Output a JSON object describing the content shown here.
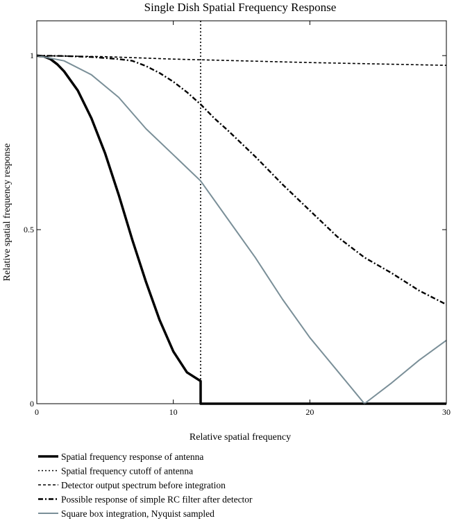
{
  "chart_data": {
    "type": "line",
    "title": "Single Dish Spatial Frequency Response",
    "xlabel": "Relative spatial frequency",
    "ylabel": "Relative spatial frequency response",
    "xlim": [
      0,
      30
    ],
    "ylim": [
      0,
      1.1
    ],
    "xticks": [
      0,
      10,
      20,
      30
    ],
    "xtick_labels": [
      "0",
      "10",
      "20",
      "30"
    ],
    "yticks": [
      0,
      0.5,
      1
    ],
    "ytick_labels": [
      "0",
      "0.5",
      "1"
    ],
    "grid": false,
    "legend_position": "below",
    "series": [
      {
        "name": "Spatial frequency response of antenna",
        "color": "#000000",
        "style": "solid-thick",
        "points": [
          [
            0,
            1.0
          ],
          [
            0.5,
            0.998
          ],
          [
            1,
            0.99
          ],
          [
            1.5,
            0.975
          ],
          [
            2,
            0.955
          ],
          [
            3,
            0.9
          ],
          [
            4,
            0.82
          ],
          [
            5,
            0.72
          ],
          [
            6,
            0.6
          ],
          [
            7,
            0.47
          ],
          [
            8,
            0.35
          ],
          [
            9,
            0.24
          ],
          [
            10,
            0.15
          ],
          [
            11,
            0.09
          ],
          [
            12,
            0.065
          ],
          [
            12,
            0.0
          ],
          [
            30,
            0.0
          ]
        ]
      },
      {
        "name": "Spatial frequency cutoff of antenna",
        "color": "#000000",
        "style": "dotted",
        "points": [
          [
            12,
            0.0
          ],
          [
            12,
            1.1
          ]
        ]
      },
      {
        "name": "Detector output spectrum before integration",
        "color": "#000000",
        "style": "dashed",
        "points": [
          [
            0,
            1.0
          ],
          [
            5,
            0.997
          ],
          [
            10,
            0.99
          ],
          [
            15,
            0.985
          ],
          [
            20,
            0.98
          ],
          [
            25,
            0.976
          ],
          [
            30,
            0.972
          ]
        ]
      },
      {
        "name": "Possible response of simple RC filter after detector",
        "color": "#000000",
        "style": "dash-dot",
        "points": [
          [
            0,
            1.0
          ],
          [
            2,
            0.999
          ],
          [
            4,
            0.996
          ],
          [
            6,
            0.99
          ],
          [
            7,
            0.985
          ],
          [
            8,
            0.97
          ],
          [
            9,
            0.95
          ],
          [
            10,
            0.925
          ],
          [
            11,
            0.895
          ],
          [
            12,
            0.86
          ],
          [
            13,
            0.82
          ],
          [
            14,
            0.785
          ],
          [
            16,
            0.71
          ],
          [
            18,
            0.63
          ],
          [
            20,
            0.555
          ],
          [
            22,
            0.48
          ],
          [
            24,
            0.42
          ],
          [
            26,
            0.375
          ],
          [
            28,
            0.325
          ],
          [
            30,
            0.285
          ]
        ]
      },
      {
        "name": "Square box integration, Nyquist sampled",
        "color": "#7a8f98",
        "style": "solid",
        "points": [
          [
            0,
            1.0
          ],
          [
            2,
            0.985
          ],
          [
            4,
            0.945
          ],
          [
            6,
            0.88
          ],
          [
            8,
            0.79
          ],
          [
            10,
            0.715
          ],
          [
            12,
            0.64
          ],
          [
            14,
            0.53
          ],
          [
            16,
            0.42
          ],
          [
            18,
            0.3
          ],
          [
            20,
            0.19
          ],
          [
            22,
            0.095
          ],
          [
            24,
            0.0
          ],
          [
            26,
            0.06
          ],
          [
            28,
            0.125
          ],
          [
            30,
            0.182
          ]
        ]
      }
    ]
  }
}
